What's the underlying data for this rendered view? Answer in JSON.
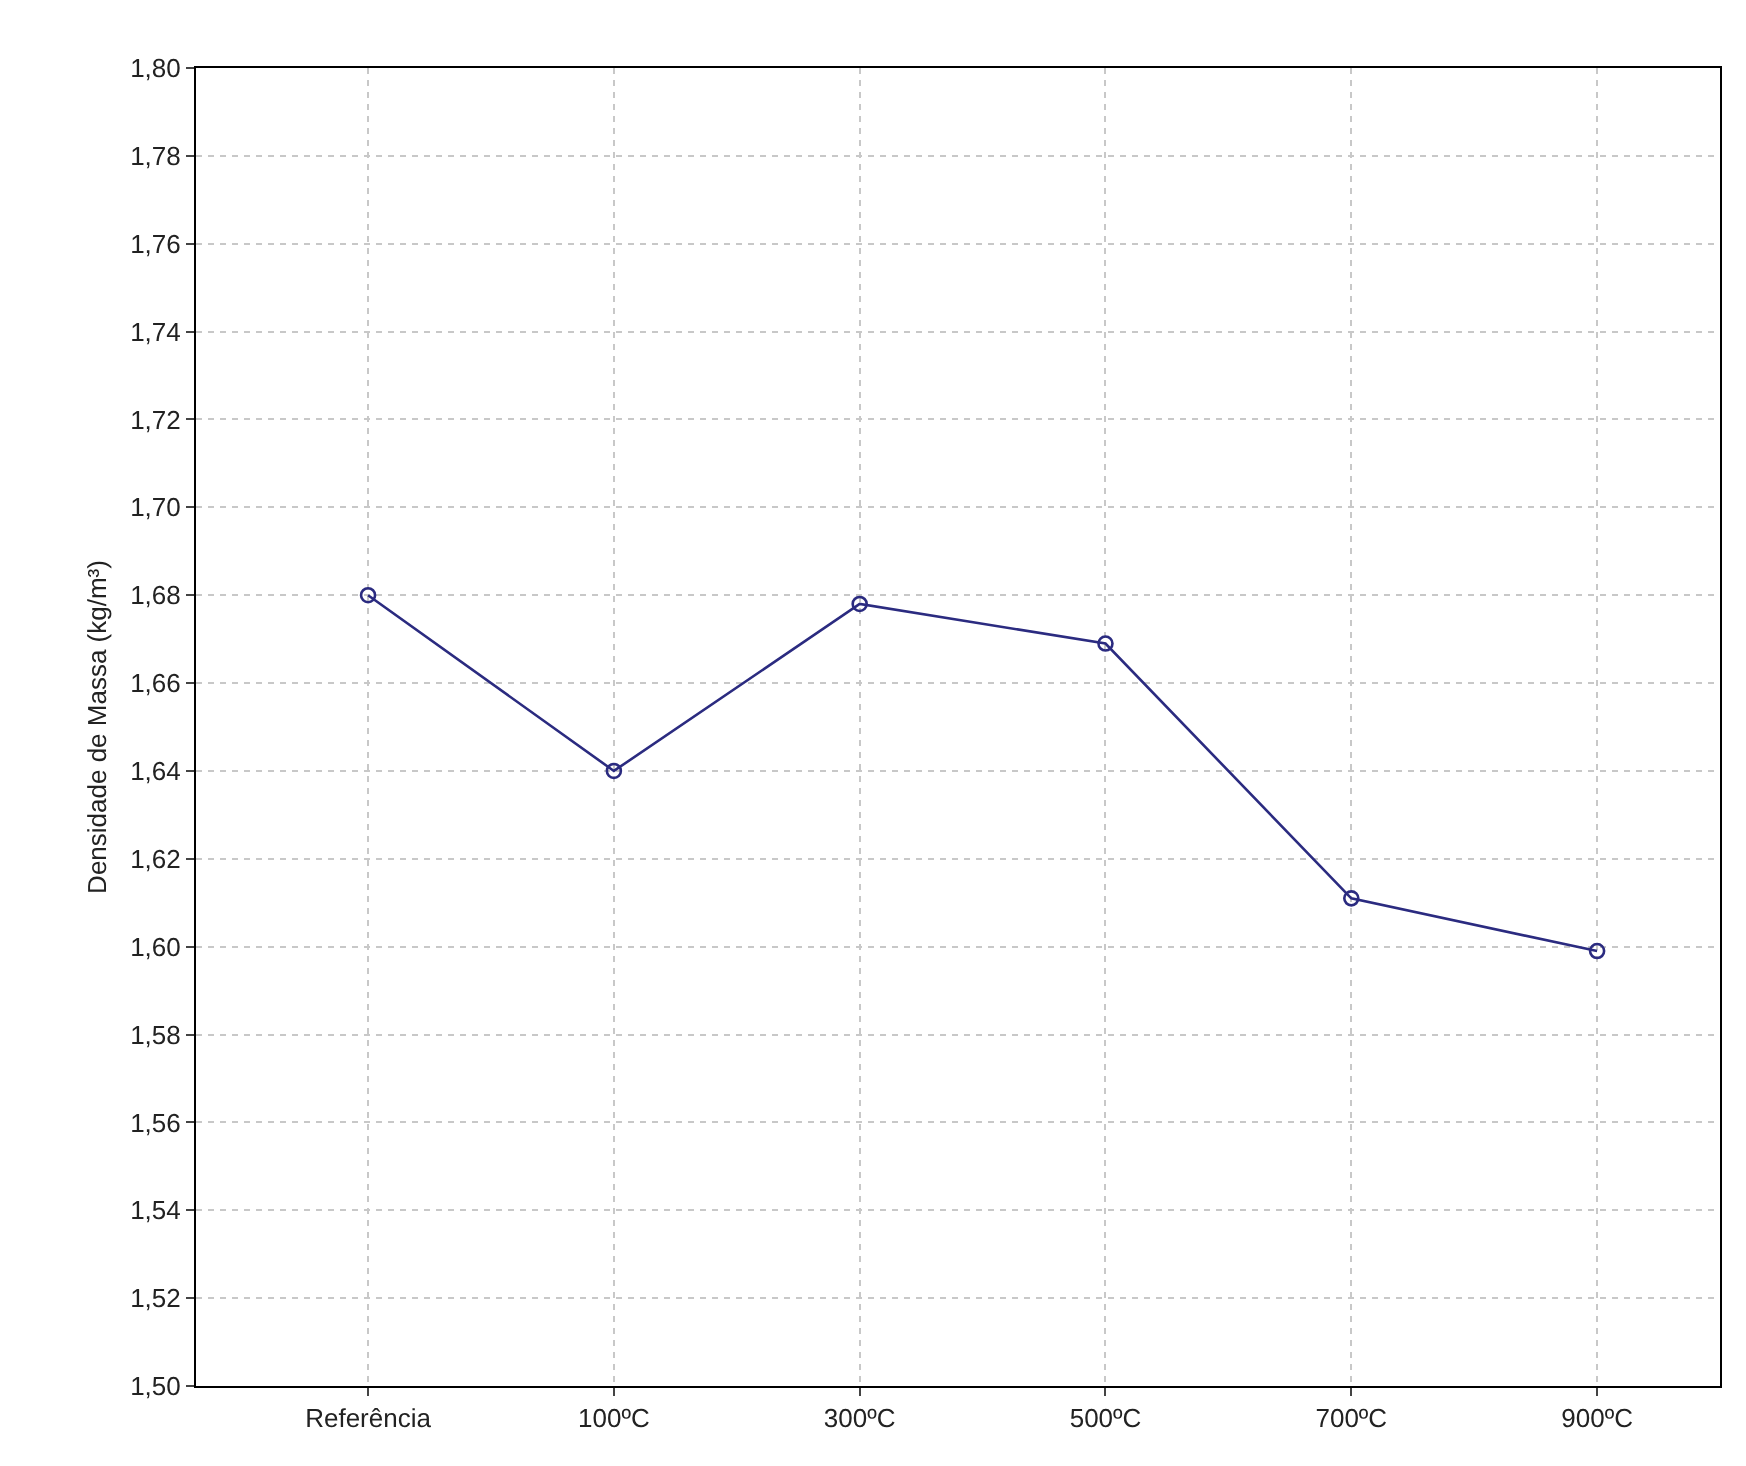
{
  "chart_data": {
    "type": "line",
    "ylabel": "Densidade de Massa (kg/m³)",
    "categories": [
      "Referência",
      "100ºC",
      "300ºC",
      "500ºC",
      "700ºC",
      "900ºC"
    ],
    "series": [
      {
        "color": "#2b2b80",
        "values": [
          1.68,
          1.64,
          1.678,
          1.669,
          1.611,
          1.599
        ]
      }
    ],
    "ylim": [
      1.5,
      1.8
    ],
    "yticks": [
      {
        "value": 1.5,
        "label": "1,50"
      },
      {
        "value": 1.52,
        "label": "1,52"
      },
      {
        "value": 1.54,
        "label": "1,54"
      },
      {
        "value": 1.56,
        "label": "1,56"
      },
      {
        "value": 1.58,
        "label": "1,58"
      },
      {
        "value": 1.6,
        "label": "1,60"
      },
      {
        "value": 1.62,
        "label": "1,62"
      },
      {
        "value": 1.64,
        "label": "1,64"
      },
      {
        "value": 1.66,
        "label": "1,66"
      },
      {
        "value": 1.68,
        "label": "1,68"
      },
      {
        "value": 1.7,
        "label": "1,70"
      },
      {
        "value": 1.72,
        "label": "1,72"
      },
      {
        "value": 1.74,
        "label": "1,74"
      },
      {
        "value": 1.76,
        "label": "1,76"
      },
      {
        "value": 1.78,
        "label": "1,78"
      },
      {
        "value": 1.8,
        "label": "1,80"
      }
    ],
    "grid": true,
    "marker": "circle",
    "line_style": "solid"
  }
}
